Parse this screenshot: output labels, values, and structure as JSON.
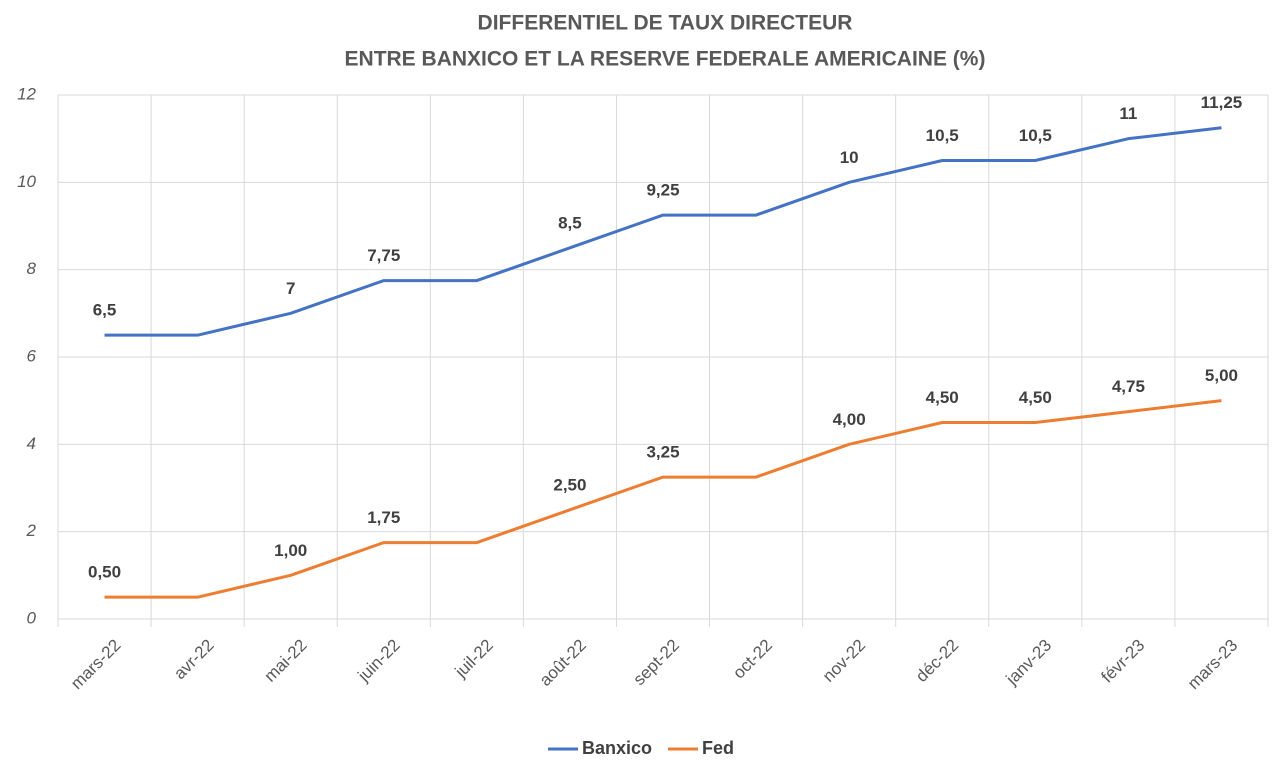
{
  "chart_data": {
    "type": "line",
    "title": "DIFFERENTIEL DE TAUX DIRECTEUR",
    "subtitle": "ENTRE BANXICO ET LA RESERVE FEDERALE AMERICAINE  (%)",
    "categories": [
      "mars-22",
      "avr-22",
      "mai-22",
      "juin-22",
      "juil-22",
      "août-22",
      "sept-22",
      "oct-22",
      "nov-22",
      "déc-22",
      "janv-23",
      "févr-23",
      "mars-23"
    ],
    "series": [
      {
        "name": "Banxico",
        "color": "#4472c4",
        "values": [
          6.5,
          6.5,
          7,
          7.75,
          7.75,
          8.5,
          9.25,
          9.25,
          10,
          10.5,
          10.5,
          11,
          11.25
        ],
        "value_labels": [
          "6,5",
          null,
          "7",
          "7,75",
          null,
          "8,5",
          "9,25",
          null,
          "10",
          "10,5",
          "10,5",
          "11",
          "11,25"
        ]
      },
      {
        "name": "Fed",
        "color": "#ed7d31",
        "values": [
          0.5,
          0.5,
          1,
          1.75,
          1.75,
          2.5,
          3.25,
          3.25,
          4,
          4.5,
          4.5,
          4.75,
          5
        ],
        "value_labels": [
          "0,50",
          null,
          "1,00",
          "1,75",
          null,
          "2,50",
          "3,25",
          null,
          "4,00",
          "4,50",
          "4,50",
          "4,75",
          "5,00"
        ]
      }
    ],
    "ylim": [
      0,
      12
    ],
    "yticks": [
      0,
      2,
      4,
      6,
      8,
      10,
      12
    ],
    "grid": true,
    "legend": "bottom"
  }
}
